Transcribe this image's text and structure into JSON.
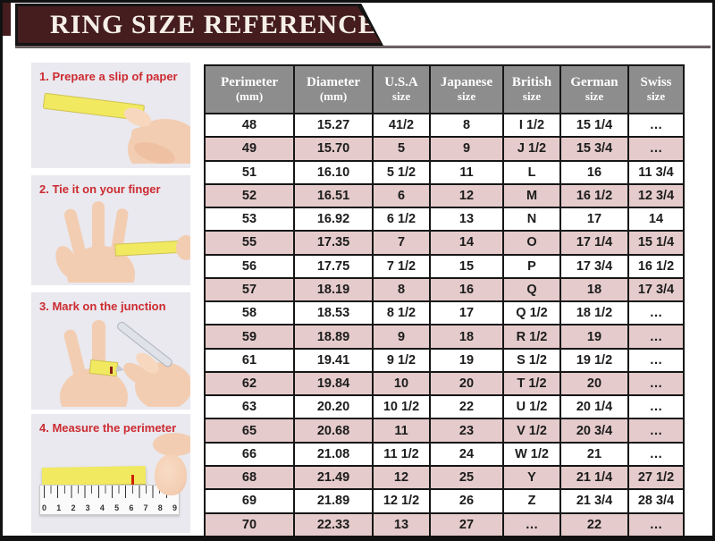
{
  "page": {
    "title": "RING SIZE REFERENCE"
  },
  "colors": {
    "page_border": "#111111",
    "banner_bg": "#451d1f",
    "banner_border": "#141414",
    "title_text": "#f5efe8",
    "rule_line": "#968b8d",
    "table_header_bg": "#8d8d8d",
    "table_header_text": "#ffffff",
    "table_border": "#161616",
    "row_bg": "#ffffff",
    "row_alt_bg": "#e5cbcb",
    "cell_text": "#1c1c1c",
    "step_label_red": "#cc2b31",
    "photo_bg": "#e9e9ef",
    "slip_yellow": "#f1e960",
    "skin": "#f3cdb2"
  },
  "steps": [
    {
      "label": "1. Prepare a slip of paper",
      "illustration": "hand-holding-paper-slip"
    },
    {
      "label": "2. Tie it on your finger",
      "illustration": "open-hand-with-slip-on-finger"
    },
    {
      "label": "3. Mark on the junction",
      "illustration": "pen-marking-slip-on-finger"
    },
    {
      "label": "4. Measure the perimeter",
      "illustration": "slip-on-ruler",
      "ruler_numbers": [
        "0",
        "1",
        "2",
        "3",
        "4",
        "5",
        "6",
        "7",
        "8",
        "9"
      ]
    }
  ],
  "table": {
    "columns": [
      {
        "line1": "Perimeter",
        "line2": "(mm)"
      },
      {
        "line1": "Diameter",
        "line2": "(mm)"
      },
      {
        "line1": "U.S.A",
        "line2": "size"
      },
      {
        "line1": "Japanese",
        "line2": "size"
      },
      {
        "line1": "British",
        "line2": "size"
      },
      {
        "line1": "German",
        "line2": "size"
      },
      {
        "line1": "Swiss",
        "line2": "size"
      }
    ]
  },
  "chart_data": {
    "type": "table",
    "title": "RING SIZE REFERENCE",
    "columns": [
      "Perimeter (mm)",
      "Diameter (mm)",
      "U.S.A size",
      "Japanese size",
      "British size",
      "German size",
      "Swiss size"
    ],
    "rows": [
      [
        "48",
        "15.27",
        "41/2",
        "8",
        "I 1/2",
        "15 1/4",
        "…"
      ],
      [
        "49",
        "15.70",
        "5",
        "9",
        "J 1/2",
        "15 3/4",
        "…"
      ],
      [
        "51",
        "16.10",
        "5 1/2",
        "11",
        "L",
        "16",
        "11 3/4"
      ],
      [
        "52",
        "16.51",
        "6",
        "12",
        "M",
        "16 1/2",
        "12 3/4"
      ],
      [
        "53",
        "16.92",
        "6 1/2",
        "13",
        "N",
        "17",
        "14"
      ],
      [
        "55",
        "17.35",
        "7",
        "14",
        "O",
        "17 1/4",
        "15 1/4"
      ],
      [
        "56",
        "17.75",
        "7 1/2",
        "15",
        "P",
        "17 3/4",
        "16 1/2"
      ],
      [
        "57",
        "18.19",
        "8",
        "16",
        "Q",
        "18",
        "17 3/4"
      ],
      [
        "58",
        "18.53",
        "8 1/2",
        "17",
        "Q 1/2",
        "18 1/2",
        "…"
      ],
      [
        "59",
        "18.89",
        "9",
        "18",
        "R 1/2",
        "19",
        "…"
      ],
      [
        "61",
        "19.41",
        "9 1/2",
        "19",
        "S 1/2",
        "19 1/2",
        "…"
      ],
      [
        "62",
        "19.84",
        "10",
        "20",
        "T 1/2",
        "20",
        "…"
      ],
      [
        "63",
        "20.20",
        "10 1/2",
        "22",
        "U 1/2",
        "20 1/4",
        "…"
      ],
      [
        "65",
        "20.68",
        "11",
        "23",
        "V 1/2",
        "20 3/4",
        "…"
      ],
      [
        "66",
        "21.08",
        "11 1/2",
        "24",
        "W 1/2",
        "21",
        "…"
      ],
      [
        "68",
        "21.49",
        "12",
        "25",
        "Y",
        "21 1/4",
        "27 1/2"
      ],
      [
        "69",
        "21.89",
        "12 1/2",
        "26",
        "Z",
        "21 3/4",
        "28 3/4"
      ],
      [
        "70",
        "22.33",
        "13",
        "27",
        "…",
        "22",
        "…"
      ]
    ]
  }
}
